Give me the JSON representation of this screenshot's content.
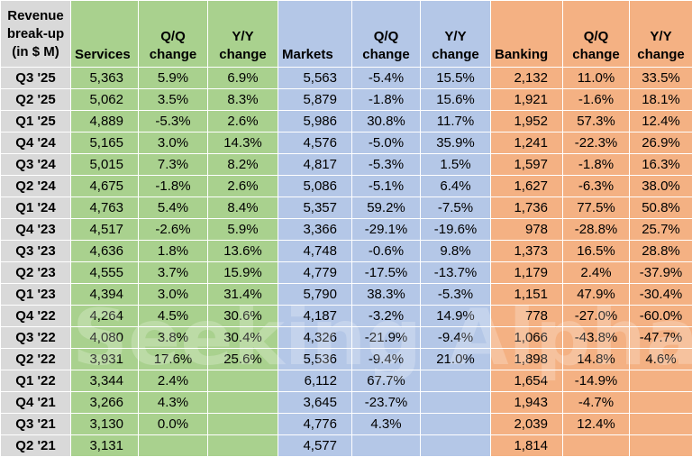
{
  "header": {
    "corner": [
      "Revenue",
      "break-up",
      "(in $ M)"
    ],
    "columns": [
      {
        "l1": "",
        "l2": "Services"
      },
      {
        "l1": "Q/Q",
        "l2": "change"
      },
      {
        "l1": "Y/Y",
        "l2": "change"
      },
      {
        "l1": "",
        "l2": "Markets"
      },
      {
        "l1": "Q/Q",
        "l2": "change"
      },
      {
        "l1": "Y/Y",
        "l2": "change"
      },
      {
        "l1": "",
        "l2": "Banking"
      },
      {
        "l1": "Q/Q",
        "l2": "change"
      },
      {
        "l1": "Y/Y",
        "l2": "change"
      }
    ]
  },
  "rows": [
    {
      "q": "Q3 '25",
      "v": [
        "5,363",
        "5.9%",
        "6.9%",
        "5,563",
        "-5.4%",
        "15.5%",
        "2,132",
        "11.0%",
        "33.5%"
      ]
    },
    {
      "q": "Q2 '25",
      "v": [
        "5,062",
        "3.5%",
        "8.3%",
        "5,879",
        "-1.8%",
        "15.6%",
        "1,921",
        "-1.6%",
        "18.1%"
      ]
    },
    {
      "q": "Q1 '25",
      "v": [
        "4,889",
        "-5.3%",
        "2.6%",
        "5,986",
        "30.8%",
        "11.7%",
        "1,952",
        "57.3%",
        "12.4%"
      ]
    },
    {
      "q": "Q4 '24",
      "v": [
        "5,165",
        "3.0%",
        "14.3%",
        "4,576",
        "-5.0%",
        "35.9%",
        "1,241",
        "-22.3%",
        "26.9%"
      ]
    },
    {
      "q": "Q3 '24",
      "v": [
        "5,015",
        "7.3%",
        "8.2%",
        "4,817",
        "-5.3%",
        "1.5%",
        "1,597",
        "-1.8%",
        "16.3%"
      ]
    },
    {
      "q": "Q2 '24",
      "v": [
        "4,675",
        "-1.8%",
        "2.6%",
        "5,086",
        "-5.1%",
        "6.4%",
        "1,627",
        "-6.3%",
        "38.0%"
      ]
    },
    {
      "q": "Q1 '24",
      "v": [
        "4,763",
        "5.4%",
        "8.4%",
        "5,357",
        "59.2%",
        "-7.5%",
        "1,736",
        "77.5%",
        "50.8%"
      ]
    },
    {
      "q": "Q4 '23",
      "v": [
        "4,517",
        "-2.6%",
        "5.9%",
        "3,366",
        "-29.1%",
        "-19.6%",
        "978",
        "-28.8%",
        "25.7%"
      ]
    },
    {
      "q": "Q3 '23",
      "v": [
        "4,636",
        "1.8%",
        "13.6%",
        "4,748",
        "-0.6%",
        "9.8%",
        "1,373",
        "16.5%",
        "28.8%"
      ]
    },
    {
      "q": "Q2 '23",
      "v": [
        "4,555",
        "3.7%",
        "15.9%",
        "4,779",
        "-17.5%",
        "-13.7%",
        "1,179",
        "2.4%",
        "-37.9%"
      ]
    },
    {
      "q": "Q1 '23",
      "v": [
        "4,394",
        "3.0%",
        "31.4%",
        "5,790",
        "38.3%",
        "-5.3%",
        "1,151",
        "47.9%",
        "-30.4%"
      ]
    },
    {
      "q": "Q4 '22",
      "v": [
        "4,264",
        "4.5%",
        "30.6%",
        "4,187",
        "-3.2%",
        "14.9%",
        "778",
        "-27.0%",
        "-60.0%"
      ]
    },
    {
      "q": "Q3 '22",
      "v": [
        "4,080",
        "3.8%",
        "30.4%",
        "4,326",
        "-21.9%",
        "-9.4%",
        "1,066",
        "-43.8%",
        "-47.7%"
      ]
    },
    {
      "q": "Q2 '22",
      "v": [
        "3,931",
        "17.6%",
        "25.6%",
        "5,536",
        "-9.4%",
        "21.0%",
        "1,898",
        "14.8%",
        "4.6%"
      ]
    },
    {
      "q": "Q1 '22",
      "v": [
        "3,344",
        "2.4%",
        "",
        "6,112",
        "67.7%",
        "",
        "1,654",
        "-14.9%",
        ""
      ]
    },
    {
      "q": "Q4 '21",
      "v": [
        "3,266",
        "4.3%",
        "",
        "3,645",
        "-23.7%",
        "",
        "1,943",
        "-4.7%",
        ""
      ]
    },
    {
      "q": "Q3 '21",
      "v": [
        "3,130",
        "0.0%",
        "",
        "4,776",
        "4.3%",
        "",
        "2,039",
        "12.4%",
        ""
      ]
    },
    {
      "q": "Q2 '21",
      "v": [
        "3,131",
        "",
        "",
        "4,577",
        "",
        "",
        "1,814",
        "",
        ""
      ]
    }
  ],
  "watermark": "Seeking Alpha",
  "colors": {
    "services": "#a9d18e",
    "markets": "#b4c7e7",
    "banking": "#f4b183",
    "quarter": "#d9d9d9"
  }
}
